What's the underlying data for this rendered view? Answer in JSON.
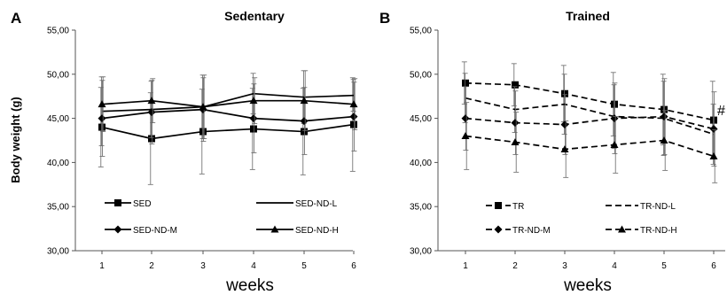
{
  "figure": {
    "ylabel": "Body weight (g)"
  },
  "chart_data": [
    {
      "type": "line",
      "panel_label": "A",
      "title": "Sedentary",
      "xlabel": "weeks",
      "ylabel": "Body weight (g)",
      "x": [
        1,
        2,
        3,
        4,
        5,
        6
      ],
      "ylim": [
        30,
        55
      ],
      "yticks": [
        "30,00",
        "35,00",
        "40,00",
        "45,00",
        "50,00",
        "55,00"
      ],
      "grid": false,
      "legend": "bottom-inside",
      "series": [
        {
          "name": "SED",
          "marker": "square",
          "dash": "solid",
          "values": [
            44.0,
            42.7,
            43.5,
            43.8,
            43.5,
            44.3
          ],
          "err": [
            4.5,
            5.2,
            4.8,
            4.6,
            4.9,
            5.3
          ]
        },
        {
          "name": "SED-ND-L",
          "marker": "none",
          "dash": "solid",
          "values": [
            45.8,
            46.0,
            46.3,
            47.8,
            47.4,
            47.6
          ],
          "err": [
            3.9,
            3.2,
            3.6,
            2.3,
            3.0,
            1.8
          ]
        },
        {
          "name": "SED-ND-M",
          "marker": "diamond",
          "dash": "solid",
          "values": [
            45.0,
            45.7,
            46.0,
            45.0,
            44.7,
            45.2
          ],
          "err": [
            4.3,
            3.6,
            3.6,
            3.9,
            3.8,
            3.9
          ]
        },
        {
          "name": "SED-ND-H",
          "marker": "triangle",
          "dash": "solid",
          "values": [
            46.6,
            47.0,
            46.3,
            47.0,
            47.0,
            46.6
          ],
          "err": [
            3.1,
            2.5,
            3.6,
            2.6,
            3.4,
            2.9
          ]
        }
      ]
    },
    {
      "type": "line",
      "panel_label": "B",
      "title": "Trained",
      "xlabel": "weeks",
      "ylabel": "",
      "x": [
        1,
        2,
        3,
        4,
        5,
        6
      ],
      "ylim": [
        30,
        55
      ],
      "yticks": [
        "30,00",
        "35,00",
        "40,00",
        "45,00",
        "50,00",
        "55,00"
      ],
      "grid": false,
      "legend": "bottom-inside",
      "annotation": {
        "text": "#",
        "x": 6
      },
      "series": [
        {
          "name": "TR",
          "marker": "square",
          "dash": "dashed",
          "values": [
            49.0,
            48.8,
            47.8,
            46.6,
            46.0,
            44.8
          ],
          "err": [
            2.4,
            2.4,
            3.2,
            3.6,
            4.0,
            4.4
          ]
        },
        {
          "name": "TR-ND-L",
          "marker": "none",
          "dash": "dashed",
          "values": [
            47.3,
            46.0,
            46.6,
            45.2,
            45.0,
            43.2
          ],
          "err": [
            2.8,
            2.6,
            3.4,
            3.6,
            4.2,
            3.4
          ]
        },
        {
          "name": "TR-ND-M",
          "marker": "diamond",
          "dash": "dashed",
          "values": [
            45.0,
            44.5,
            44.3,
            45.0,
            45.2,
            43.8
          ],
          "err": [
            3.6,
            3.6,
            3.4,
            4.0,
            4.3,
            4.2
          ]
        },
        {
          "name": "TR-ND-H",
          "marker": "triangle",
          "dash": "dashed",
          "values": [
            43.0,
            42.3,
            41.5,
            42.0,
            42.5,
            40.7
          ],
          "err": [
            3.8,
            3.4,
            3.2,
            3.2,
            3.4,
            3.0
          ]
        }
      ]
    }
  ]
}
